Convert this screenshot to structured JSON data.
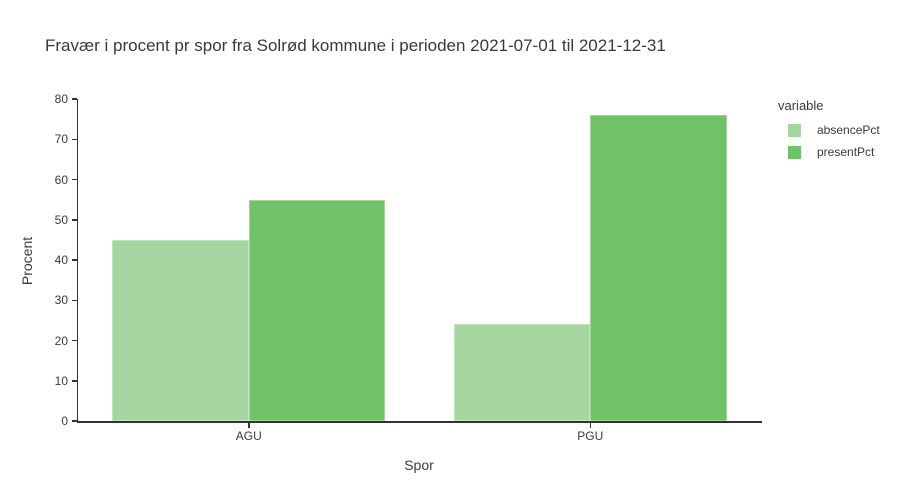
{
  "chart_data": {
    "type": "bar",
    "title": "Fravær i procent pr spor fra Solrød kommune i perioden 2021-07-01 til 2021-12-31",
    "categories": [
      "AGU",
      "PGU"
    ],
    "series": [
      {
        "name": "absencePct",
        "values": [
          45,
          24
        ],
        "color": "#a5d6a0"
      },
      {
        "name": "presentPct",
        "values": [
          55,
          76
        ],
        "color": "#70c168"
      }
    ],
    "xlabel": "Spor",
    "ylabel": "Procent",
    "ylim": [
      0,
      80
    ],
    "yticks": [
      0,
      10,
      20,
      30,
      40,
      50,
      60,
      70,
      80
    ],
    "grid": false,
    "legend_title": "variable",
    "legend_position": "right",
    "bar_mode": "group"
  },
  "colors": {
    "text": "#3a3a3a",
    "axis_line": "#323232",
    "background": "#ffffff"
  }
}
